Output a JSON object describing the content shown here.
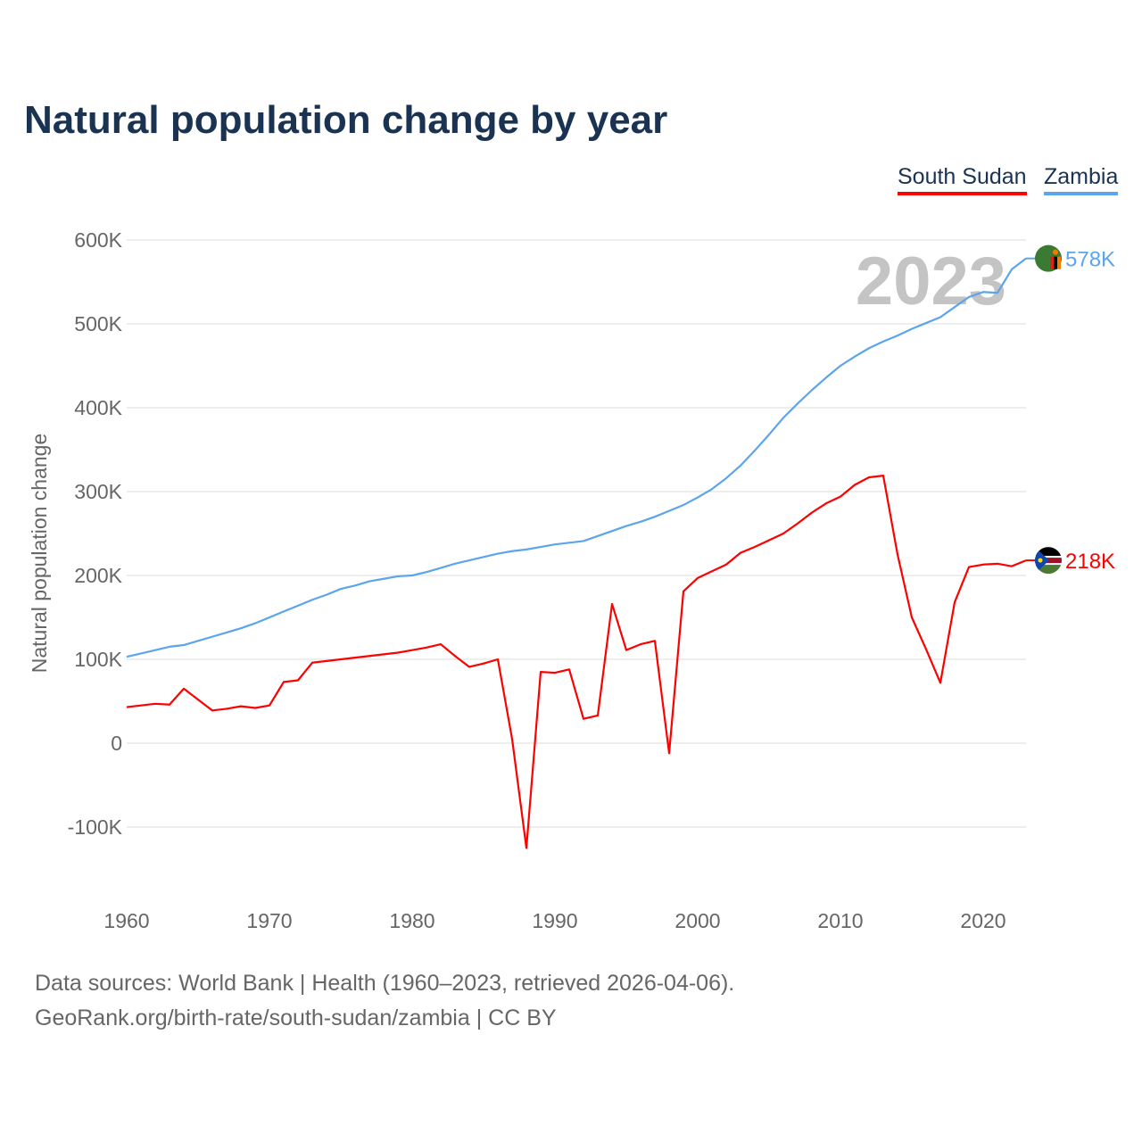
{
  "chart_data": {
    "type": "line",
    "title": "Natural population change by year",
    "xlabel": "",
    "ylabel": "Natural population change",
    "xlim": [
      1960,
      2023
    ],
    "ylim": [
      -150000,
      620000
    ],
    "grid": true,
    "legend_position": "top-right",
    "x_ticks": [
      1960,
      1970,
      1980,
      1990,
      2000,
      2010,
      2020
    ],
    "x_tick_labels": [
      "1960",
      "1970",
      "1980",
      "1990",
      "2000",
      "2010",
      "2020"
    ],
    "y_ticks": [
      -100000,
      0,
      100000,
      200000,
      300000,
      400000,
      500000,
      600000
    ],
    "y_tick_labels": [
      "-100K",
      "0",
      "100K",
      "200K",
      "300K",
      "400K",
      "500K",
      "600K"
    ],
    "year_label": "2023",
    "series": [
      {
        "name": "South Sudan",
        "color": "#ff0000",
        "end_label": "218K",
        "flag": "south-sudan-flag-icon",
        "values": [
          43000,
          45000,
          47000,
          46000,
          65000,
          52000,
          39000,
          41000,
          44000,
          42000,
          45000,
          73000,
          75000,
          96000,
          98000,
          100000,
          102000,
          104000,
          106000,
          108000,
          111000,
          114000,
          118000,
          104000,
          91000,
          95000,
          100000,
          5000,
          -125000,
          85000,
          84000,
          88000,
          29000,
          33000,
          166000,
          111000,
          118000,
          122000,
          -12000,
          181000,
          197000,
          205000,
          213000,
          227000,
          234000,
          242000,
          250000,
          262000,
          275000,
          286000,
          294000,
          308000,
          317000,
          319000,
          225000,
          150000,
          112000,
          72000,
          168000,
          210000,
          213000,
          214000,
          211000,
          218000
        ]
      },
      {
        "name": "Zambia",
        "color": "#5ca4ec",
        "end_label": "578K",
        "flag": "zambia-flag-icon",
        "values": [
          103000,
          107000,
          111000,
          115000,
          117000,
          122000,
          127000,
          132000,
          137000,
          143000,
          150000,
          157000,
          164000,
          171000,
          177000,
          184000,
          188000,
          193000,
          196000,
          199000,
          200000,
          204000,
          209000,
          214000,
          218000,
          222000,
          226000,
          229000,
          231000,
          234000,
          237000,
          239000,
          241000,
          247000,
          253000,
          259000,
          264000,
          270000,
          277000,
          284000,
          293000,
          303000,
          316000,
          331000,
          349000,
          368000,
          388000,
          405000,
          421000,
          436000,
          450000,
          461000,
          471000,
          479000,
          486000,
          494000,
          501000,
          508000,
          520000,
          532000,
          538000,
          537000,
          565000,
          578000
        ]
      }
    ]
  },
  "footer": {
    "line1": "Data sources: World Bank | Health (1960–2023, retrieved 2026-04-06).",
    "line2": "GeoRank.org/birth-rate/south-sudan/zambia | CC BY"
  }
}
